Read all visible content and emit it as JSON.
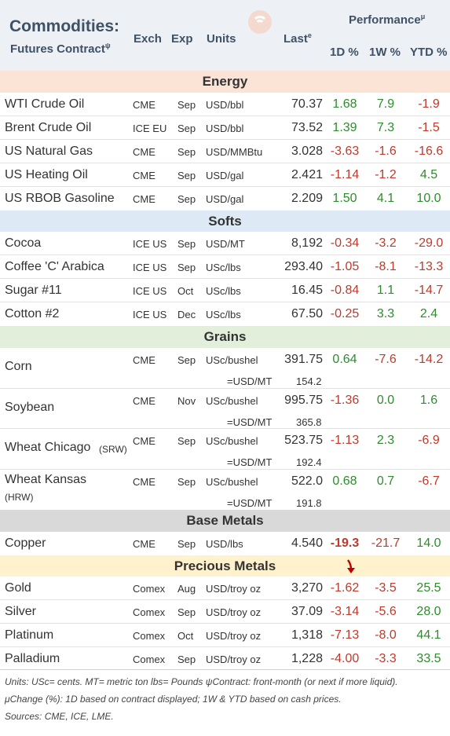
{
  "header": {
    "title": "Commodities:",
    "subtitle": "Futures Contract",
    "subtitle_sup": "ψ",
    "col_exch": "Exch",
    "col_exp": "Exp",
    "col_units": "Units",
    "col_last": "Last",
    "col_last_sup": "e",
    "performance": "Performance",
    "performance_sup": "μ",
    "col_1d": "1D %",
    "col_1w": "1W %",
    "col_ytd": "YTD %"
  },
  "sections": {
    "energy": "Energy",
    "softs": "Softs",
    "grains": "Grains",
    "base_metals": "Base Metals",
    "precious_metals": "Precious Metals"
  },
  "chart_data": {
    "type": "table",
    "columns": [
      "Futures Contract",
      "Exch",
      "Exp",
      "Units",
      "Last",
      "1D %",
      "1W %",
      "YTD %"
    ],
    "energy": [
      {
        "name": "WTI Crude Oil",
        "exch": "CME",
        "exp": "Sep",
        "units": "USD/bbl",
        "last": "70.37",
        "d1": "1.68",
        "w1": "7.9",
        "ytd": "-1.9"
      },
      {
        "name": "Brent Crude Oil",
        "exch": "ICE EU",
        "exp": "Sep",
        "units": "USD/bbl",
        "last": "73.52",
        "d1": "1.39",
        "w1": "7.3",
        "ytd": "-1.5"
      },
      {
        "name": "US Natural Gas",
        "exch": "CME",
        "exp": "Sep",
        "units": "USD/MMBtu",
        "last": "3.028",
        "d1": "-3.63",
        "w1": "-1.6",
        "ytd": "-16.6"
      },
      {
        "name": "US Heating Oil",
        "exch": "CME",
        "exp": "Sep",
        "units": "USD/gal",
        "last": "2.421",
        "d1": "-1.14",
        "w1": "-1.2",
        "ytd": "4.5"
      },
      {
        "name": "US RBOB Gasoline",
        "exch": "CME",
        "exp": "Sep",
        "units": "USD/gal",
        "last": "2.209",
        "d1": "1.50",
        "w1": "4.1",
        "ytd": "10.0"
      }
    ],
    "softs": [
      {
        "name": "Cocoa",
        "exch": "ICE US",
        "exp": "Sep",
        "units": "USD/MT",
        "last": "8,192",
        "d1": "-0.34",
        "w1": "-3.2",
        "ytd": "-29.0"
      },
      {
        "name": "Coffee 'C' Arabica",
        "exch": "ICE US",
        "exp": "Sep",
        "units": "USc/lbs",
        "last": "293.40",
        "d1": "-1.05",
        "w1": "-8.1",
        "ytd": "-13.3"
      },
      {
        "name": "Sugar #11",
        "exch": "ICE US",
        "exp": "Oct",
        "units": "USc/lbs",
        "last": "16.45",
        "d1": "-0.84",
        "w1": "1.1",
        "ytd": "-14.7"
      },
      {
        "name": "Cotton #2",
        "exch": "ICE US",
        "exp": "Dec",
        "units": "USc/lbs",
        "last": "67.50",
        "d1": "-0.25",
        "w1": "3.3",
        "ytd": "2.4"
      }
    ],
    "grains": [
      {
        "name": "Corn",
        "sub": "",
        "exch": "CME",
        "exp": "Sep",
        "units": "USc/bushel",
        "last": "391.75",
        "d1": "0.64",
        "w1": "-7.6",
        "ytd": "-14.2",
        "usd_label": "=USD/MT",
        "usd_value": "154.2"
      },
      {
        "name": "Soybean",
        "sub": "",
        "exch": "CME",
        "exp": "Nov",
        "units": "USc/bushel",
        "last": "995.75",
        "d1": "-1.36",
        "w1": "0.0",
        "ytd": "1.6",
        "usd_label": "=USD/MT",
        "usd_value": "365.8"
      },
      {
        "name": "Wheat Chicago",
        "sub": "(SRW)",
        "exch": "CME",
        "exp": "Sep",
        "units": "USc/bushel",
        "last": "523.75",
        "d1": "-1.13",
        "w1": "2.3",
        "ytd": "-6.9",
        "usd_label": "=USD/MT",
        "usd_value": "192.4"
      },
      {
        "name": "Wheat Kansas",
        "sub": "(HRW)",
        "exch": "CME",
        "exp": "Sep",
        "units": "USc/bushel",
        "last": "522.0",
        "d1": "0.68",
        "w1": "0.7",
        "ytd": "-6.7",
        "usd_label": "=USD/MT",
        "usd_value": "191.8"
      }
    ],
    "base_metals": [
      {
        "name": "Copper",
        "exch": "CME",
        "exp": "Sep",
        "units": "USD/lbs",
        "last": "4.540",
        "d1": "-19.3",
        "w1": "-21.7",
        "ytd": "14.0"
      }
    ],
    "precious_metals": [
      {
        "name": "Gold",
        "exch": "Comex",
        "exp": "Aug",
        "units": "USD/troy oz",
        "last": "3,270",
        "d1": "-1.62",
        "w1": "-3.5",
        "ytd": "25.5"
      },
      {
        "name": "Silver",
        "exch": "Comex",
        "exp": "Sep",
        "units": "USD/troy oz",
        "last": "37.09",
        "d1": "-3.14",
        "w1": "-5.6",
        "ytd": "28.0"
      },
      {
        "name": "Platinum",
        "exch": "Comex",
        "exp": "Oct",
        "units": "USD/troy oz",
        "last": "1,318",
        "d1": "-7.13",
        "w1": "-8.0",
        "ytd": "44.1"
      },
      {
        "name": "Palladium",
        "exch": "Comex",
        "exp": "Sep",
        "units": "USD/troy oz",
        "last": "1,228",
        "d1": "-4.00",
        "w1": "-3.3",
        "ytd": "33.5"
      }
    ]
  },
  "colors": {
    "energy_band": "#fbe3d6",
    "softs_band": "#dde9f5",
    "grains_band": "#e2efda",
    "base_metals_band": "#d9d9d9",
    "precious_metals_band": "#fff2cc",
    "positive": "#2e8b2e",
    "negative": "#c0392b",
    "arrow": "#c00000"
  },
  "footer": {
    "line1": "Units: USc= cents.   MT= metric ton    lbs= Pounds  ψContract: front-month (or next if more liquid).",
    "line2": "μChange (%): 1D based on contract displayed; 1W & YTD based on cash prices.",
    "line3": "Sources: CME, ICE, LME."
  }
}
